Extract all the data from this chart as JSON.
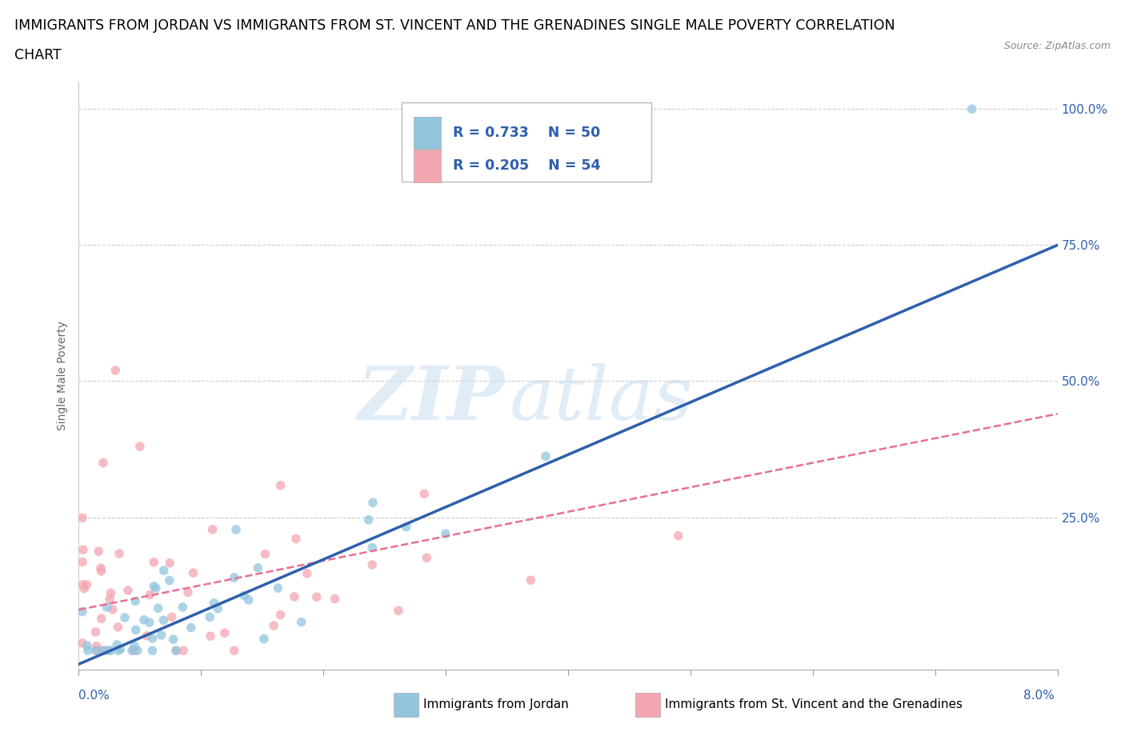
{
  "title_line1": "IMMIGRANTS FROM JORDAN VS IMMIGRANTS FROM ST. VINCENT AND THE GRENADINES SINGLE MALE POVERTY CORRELATION",
  "title_line2": "CHART",
  "source_text": "Source: ZipAtlas.com",
  "ylabel": "Single Male Poverty",
  "color_jordan": "#92C5DE",
  "color_stvin": "#F4A6B0",
  "color_jordan_line": "#2E5FAC",
  "color_stvin_line": "#D45B7A",
  "color_stvin_dashed": "#E87090",
  "xmin": 0.0,
  "xmax": 0.08,
  "ymin": -0.03,
  "ymax": 1.05,
  "jordan_trend_x0": 0.0,
  "jordan_trend_y0": -0.02,
  "jordan_trend_x1": 0.08,
  "jordan_trend_y1": 0.75,
  "stvin_trend_x0": 0.0,
  "stvin_trend_y0": 0.08,
  "stvin_trend_x1": 0.08,
  "stvin_trend_y1": 0.44,
  "background_color": "#ffffff",
  "title_fontsize": 12.5,
  "tick_fontsize": 11,
  "ylabel_fontsize": 10,
  "watermark_color": "#C8DEF0",
  "grid_color": "#CCCCCC",
  "legend_text_color": "#2E5FAC"
}
